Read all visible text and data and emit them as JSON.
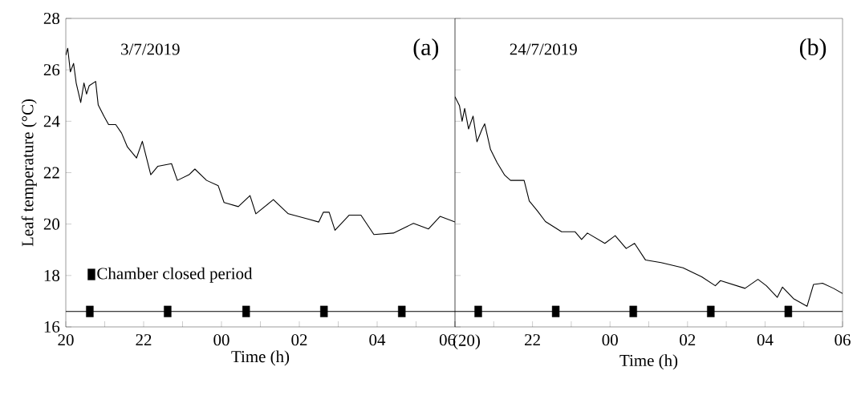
{
  "chart_data": [
    {
      "type": "line",
      "xlabel": "Time (h)",
      "ylabel": "Leaf temperature (°C)",
      "annotations": [
        "3/7/2019",
        "(a)"
      ],
      "xlim": [
        "2019-07-03T20:00",
        "2019-07-04T06:00"
      ],
      "ylim": [
        16,
        28
      ],
      "xticks": [
        {
          "value": "2019-07-03T20:00",
          "label": "20"
        },
        {
          "value": "2019-07-03T21:00",
          "label": null
        },
        {
          "value": "2019-07-03T22:00",
          "label": "22"
        },
        {
          "value": "2019-07-03T23:00",
          "label": null
        },
        {
          "value": "2019-07-04T00:00",
          "label": "00"
        },
        {
          "value": "2019-07-04T01:00",
          "label": null
        },
        {
          "value": "2019-07-04T02:00",
          "label": "02"
        },
        {
          "value": "2019-07-04T03:00",
          "label": null
        },
        {
          "value": "2019-07-04T04:00",
          "label": "04"
        },
        {
          "value": "2019-07-04T05:00",
          "label": null
        },
        {
          "value": "2019-07-04T06:00",
          "label": "06"
        }
      ],
      "yticks": [
        16,
        18,
        20,
        22,
        24,
        26,
        28
      ],
      "grid": false,
      "legend": "bottom left",
      "line_style": "solid",
      "series": [
        {
          "color": "#000000",
          "x": [
            "2019-07-03T20:00",
            "2019-07-04T06:00"
          ],
          "values": [
            16.6,
            16.6
          ]
        },
        {
          "color": "#000000",
          "x": [
            "2019-07-03T20:00",
            "2019-07-03T20:03",
            "2019-07-03T20:07",
            "2019-07-03T20:12",
            "2019-07-03T20:16",
            "2019-07-03T20:23",
            "2019-07-03T20:28",
            "2019-07-03T20:32",
            "2019-07-03T20:36",
            "2019-07-03T20:46",
            "2019-07-03T20:50",
            "2019-07-03T20:59",
            "2019-07-03T21:06",
            "2019-07-03T21:17",
            "2019-07-03T21:26",
            "2019-07-03T21:35",
            "2019-07-03T21:49",
            "2019-07-03T21:58",
            "2019-07-03T22:11",
            "2019-07-03T22:22",
            "2019-07-03T22:43",
            "2019-07-03T22:52",
            "2019-07-03T23:10",
            "2019-07-03T23:19",
            "2019-07-03T23:37",
            "2019-07-03T23:55",
            "2019-07-04T00:04",
            "2019-07-04T00:26",
            "2019-07-04T00:44",
            "2019-07-04T00:53",
            "2019-07-04T01:20",
            "2019-07-04T01:43",
            "2019-07-04T02:14",
            "2019-07-04T02:30",
            "2019-07-04T02:37",
            "2019-07-04T02:46",
            "2019-07-04T02:55",
            "2019-07-04T03:17",
            "2019-07-04T03:35",
            "2019-07-04T03:55",
            "2019-07-04T04:25",
            "2019-07-04T04:56",
            "2019-07-04T05:19",
            "2019-07-04T05:37",
            "2019-07-04T06:00"
          ],
          "values": [
            26.57,
            26.84,
            25.92,
            26.25,
            25.49,
            24.73,
            25.49,
            25.06,
            25.38,
            25.55,
            24.63,
            24.19,
            23.87,
            23.87,
            23.54,
            23.0,
            22.57,
            23.22,
            21.92,
            22.25,
            22.35,
            21.7,
            21.92,
            22.14,
            21.7,
            21.49,
            20.84,
            20.68,
            21.11,
            20.4,
            20.95,
            20.4,
            20.19,
            20.08,
            20.46,
            20.46,
            19.76,
            20.35,
            20.35,
            19.59,
            19.65,
            20.03,
            19.81,
            20.3,
            20.08
          ]
        },
        {
          "type": "scatter",
          "name": "Chamber closed period",
          "color": "#000000",
          "marker": "square",
          "x": [
            "2019-07-03T20:37",
            "2019-07-03T22:37",
            "2019-07-04T00:38",
            "2019-07-04T02:38",
            "2019-07-04T04:38"
          ],
          "values": [
            16.6,
            16.6,
            16.6,
            16.6,
            16.6
          ]
        }
      ]
    },
    {
      "type": "line",
      "xlabel": "Time (h)",
      "annotations": [
        "24/7/2019",
        "(b)"
      ],
      "xlim": [
        "2019-07-24T20:00",
        "2019-07-25T06:00"
      ],
      "ylim": [
        16,
        28
      ],
      "tick_labels": "x",
      "xticks": [
        {
          "value": "2019-07-24T20:00",
          "label": "(20)"
        },
        {
          "value": "2019-07-24T21:00",
          "label": null
        },
        {
          "value": "2019-07-24T22:00",
          "label": "22"
        },
        {
          "value": "2019-07-24T23:00",
          "label": null
        },
        {
          "value": "2019-07-25T00:00",
          "label": "00"
        },
        {
          "value": "2019-07-25T01:00",
          "label": null
        },
        {
          "value": "2019-07-25T02:00",
          "label": "02"
        },
        {
          "value": "2019-07-25T03:00",
          "label": null
        },
        {
          "value": "2019-07-25T04:00",
          "label": "04"
        },
        {
          "value": "2019-07-25T05:00",
          "label": null
        },
        {
          "value": "2019-07-25T06:00",
          "label": "06"
        }
      ],
      "yticks": [
        16,
        18,
        20,
        22,
        24,
        26,
        28
      ],
      "grid": false,
      "line_style": "solid",
      "series": [
        {
          "color": "#000000",
          "x": [
            "2019-07-24T20:00",
            "2019-07-25T06:00"
          ],
          "values": [
            16.6,
            16.6
          ]
        },
        {
          "color": "#000000",
          "x": [
            "2019-07-24T20:00",
            "2019-07-24T20:07",
            "2019-07-24T20:11",
            "2019-07-24T20:15",
            "2019-07-24T20:21",
            "2019-07-24T20:28",
            "2019-07-24T20:34",
            "2019-07-24T20:42",
            "2019-07-24T20:46",
            "2019-07-24T20:55",
            "2019-07-24T21:05",
            "2019-07-24T21:17",
            "2019-07-24T21:26",
            "2019-07-24T21:47",
            "2019-07-24T21:55",
            "2019-07-24T22:08",
            "2019-07-24T22:20",
            "2019-07-24T22:45",
            "2019-07-24T23:06",
            "2019-07-24T23:16",
            "2019-07-24T23:25",
            "2019-07-24T23:52",
            "2019-07-25T00:08",
            "2019-07-25T00:25",
            "2019-07-25T00:38",
            "2019-07-25T00:55",
            "2019-07-25T01:19",
            "2019-07-25T01:53",
            "2019-07-25T02:22",
            "2019-07-25T02:43",
            "2019-07-25T02:51",
            "2019-07-25T03:29",
            "2019-07-25T03:49",
            "2019-07-25T04:02",
            "2019-07-25T04:19",
            "2019-07-25T04:27",
            "2019-07-25T04:44",
            "2019-07-25T05:05",
            "2019-07-25T05:15",
            "2019-07-25T05:29",
            "2019-07-25T05:46",
            "2019-07-25T06:00"
          ],
          "values": [
            24.95,
            24.6,
            24.0,
            24.5,
            23.7,
            24.2,
            23.2,
            23.7,
            23.9,
            22.9,
            22.4,
            21.9,
            21.7,
            21.7,
            20.9,
            20.5,
            20.1,
            19.7,
            19.7,
            19.4,
            19.65,
            19.25,
            19.55,
            19.05,
            19.25,
            18.6,
            18.5,
            18.3,
            17.95,
            17.6,
            17.8,
            17.5,
            17.85,
            17.6,
            17.15,
            17.55,
            17.1,
            16.8,
            17.65,
            17.7,
            17.5,
            17.3
          ]
        },
        {
          "type": "scatter",
          "color": "#000000",
          "marker": "square",
          "x": [
            "2019-07-24T20:36",
            "2019-07-24T22:36",
            "2019-07-25T00:36",
            "2019-07-25T02:36",
            "2019-07-25T04:36"
          ],
          "values": [
            16.6,
            16.6,
            16.6,
            16.6,
            16.6
          ]
        }
      ]
    }
  ]
}
